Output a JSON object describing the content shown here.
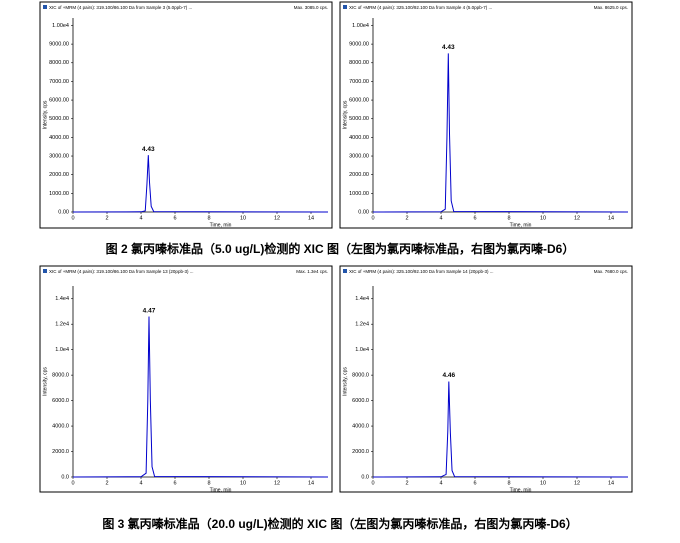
{
  "chart_data": [
    {
      "type": "line",
      "title": "XIC of +MRM (4 pairs): 319.100/86.100 Da from Sample 3 (5.0ppb-7) ...",
      "max_label": "Max. 3085.0 cps.",
      "x_label": "Time, min",
      "y_label": "Intensity, cps",
      "x": [
        0,
        4.0,
        4.25,
        4.35,
        4.43,
        4.5,
        4.6,
        4.75,
        15
      ],
      "values": [
        0,
        10,
        60,
        1500,
        3050,
        1600,
        300,
        20,
        0
      ],
      "color": "#0000cc",
      "annotations": [
        "4.43"
      ],
      "xlim": [
        0,
        15
      ],
      "xticks": [
        0,
        2,
        4,
        6,
        8,
        10,
        12,
        14
      ],
      "ylim": [
        0,
        10400
      ],
      "yticks": [
        {
          "value": 0,
          "label": "0.00"
        },
        {
          "value": 1000,
          "label": "1000.00"
        },
        {
          "value": 2000,
          "label": "2000.00"
        },
        {
          "value": 3000,
          "label": "3000.00"
        },
        {
          "value": 4000,
          "label": "4000.00"
        },
        {
          "value": 5000,
          "label": "5000.00"
        },
        {
          "value": 6000,
          "label": "6000.00"
        },
        {
          "value": 7000,
          "label": "7000.00"
        },
        {
          "value": 8000,
          "label": "8000.00"
        },
        {
          "value": 9000,
          "label": "9000.00"
        },
        {
          "value": 10000,
          "label": "1.00e4"
        }
      ]
    },
    {
      "type": "line",
      "title": "XIC of +MRM (4 pairs): 325.100/92.100 Da from Sample 4 (5.0ppb-7) ...",
      "max_label": "Max. 8625.0 cps.",
      "x_label": "Time, min",
      "y_label": "Intensity, cps",
      "x": [
        0,
        4.0,
        4.25,
        4.35,
        4.43,
        4.5,
        4.6,
        4.75,
        15
      ],
      "values": [
        0,
        10,
        150,
        4000,
        8500,
        4200,
        600,
        30,
        0
      ],
      "color": "#0000cc",
      "annotations": [
        "4.43"
      ],
      "xlim": [
        0,
        15
      ],
      "xticks": [
        0,
        2,
        4,
        6,
        8,
        10,
        12,
        14
      ],
      "ylim": [
        0,
        10400
      ],
      "yticks": [
        {
          "value": 0,
          "label": "0.00"
        },
        {
          "value": 1000,
          "label": "1000.00"
        },
        {
          "value": 2000,
          "label": "2000.00"
        },
        {
          "value": 3000,
          "label": "3000.00"
        },
        {
          "value": 4000,
          "label": "4000.00"
        },
        {
          "value": 5000,
          "label": "5000.00"
        },
        {
          "value": 6000,
          "label": "6000.00"
        },
        {
          "value": 7000,
          "label": "7000.00"
        },
        {
          "value": 8000,
          "label": "8000.00"
        },
        {
          "value": 9000,
          "label": "9000.00"
        },
        {
          "value": 10000,
          "label": "1.00e4"
        }
      ]
    },
    {
      "type": "line",
      "title": "XIC of +MRM (4 pairs): 319.100/86.100 Da from Sample 13 (20ppb-3) ...",
      "max_label": "Max. 1.3e4 cps.",
      "x_label": "Time, min",
      "y_label": "Intensity, cps",
      "x": [
        0,
        4.0,
        4.3,
        4.4,
        4.47,
        4.55,
        4.65,
        4.8,
        15
      ],
      "values": [
        0,
        20,
        300,
        6000,
        12600,
        6000,
        800,
        40,
        0
      ],
      "color": "#0000cc",
      "annotations": [
        "4.47"
      ],
      "xlim": [
        0,
        15
      ],
      "xticks": [
        0,
        2,
        4,
        6,
        8,
        10,
        12,
        14
      ],
      "ylim": [
        0,
        15000
      ],
      "yticks": [
        {
          "value": 0,
          "label": "0.0"
        },
        {
          "value": 2000,
          "label": "2000.0"
        },
        {
          "value": 4000,
          "label": "4000.0"
        },
        {
          "value": 6000,
          "label": "6000.0"
        },
        {
          "value": 8000,
          "label": "8000.0"
        },
        {
          "value": 10000,
          "label": "1.0e4"
        },
        {
          "value": 12000,
          "label": "1.2e4"
        },
        {
          "value": 14000,
          "label": "1.4e4"
        }
      ]
    },
    {
      "type": "line",
      "title": "XIC of +MRM (4 pairs): 325.100/92.100 Da from Sample 14 (20ppb-3) ...",
      "max_label": "Max. 7680.0 cps.",
      "x_label": "Time, min",
      "y_label": "Intensity, cps",
      "x": [
        0,
        4.0,
        4.3,
        4.4,
        4.46,
        4.55,
        4.65,
        4.8,
        15
      ],
      "values": [
        0,
        15,
        200,
        3600,
        7500,
        3500,
        500,
        30,
        0
      ],
      "color": "#0000cc",
      "annotations": [
        "4.46"
      ],
      "xlim": [
        0,
        15
      ],
      "xticks": [
        0,
        2,
        4,
        6,
        8,
        10,
        12,
        14
      ],
      "ylim": [
        0,
        15000
      ],
      "yticks": [
        {
          "value": 0,
          "label": "0.0"
        },
        {
          "value": 2000,
          "label": "2000.0"
        },
        {
          "value": 4000,
          "label": "4000.0"
        },
        {
          "value": 6000,
          "label": "6000.0"
        },
        {
          "value": 8000,
          "label": "8000.0"
        },
        {
          "value": 10000,
          "label": "1.0e4"
        },
        {
          "value": 12000,
          "label": "1.2e4"
        },
        {
          "value": 14000,
          "label": "1.4e4"
        }
      ]
    }
  ],
  "captions": [
    "图 2  氯丙嗪标准品（5.0 ug/L)检测的 XIC 图（左图为氯丙嗪标准品，右图为氯丙嗪-D6）",
    "图 3  氯丙嗪标准品（20.0 ug/L)检测的 XIC 图（左图为氯丙嗪标准品，右图为氯丙嗪-D6）"
  ]
}
